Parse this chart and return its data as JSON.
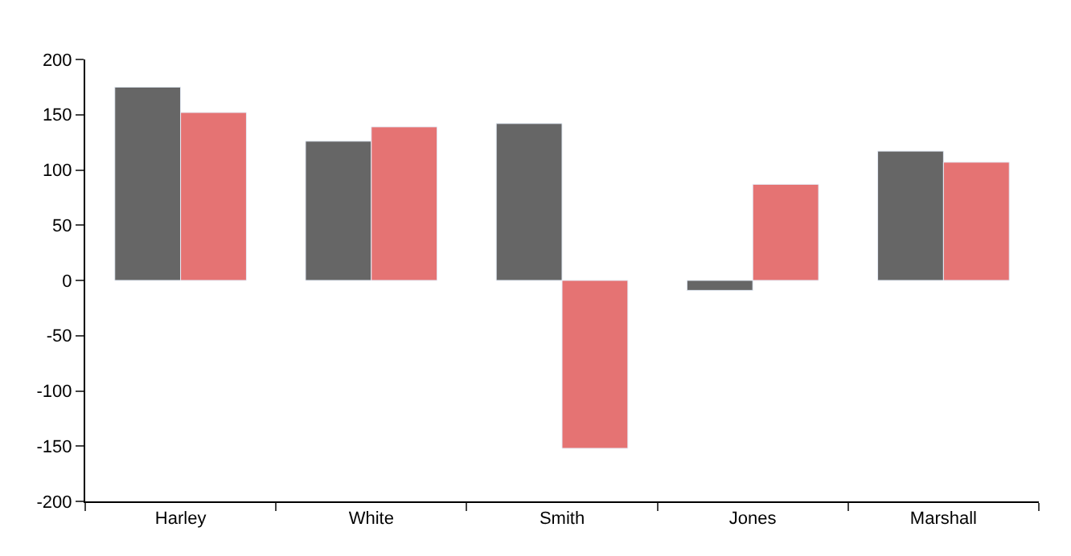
{
  "chart_data": {
    "type": "bar",
    "categories": [
      "Harley",
      "White",
      "Smith",
      "Jones",
      "Marshall"
    ],
    "series": [
      {
        "color": "#666666",
        "values": [
          175,
          126,
          142,
          -9,
          117
        ]
      },
      {
        "color": "#e57373",
        "values": [
          152,
          139,
          -152,
          87,
          107
        ]
      }
    ],
    "ylim": [
      -200,
      200
    ],
    "yticks": [
      -200,
      -150,
      -100,
      -50,
      0,
      50,
      100,
      150,
      200
    ]
  }
}
